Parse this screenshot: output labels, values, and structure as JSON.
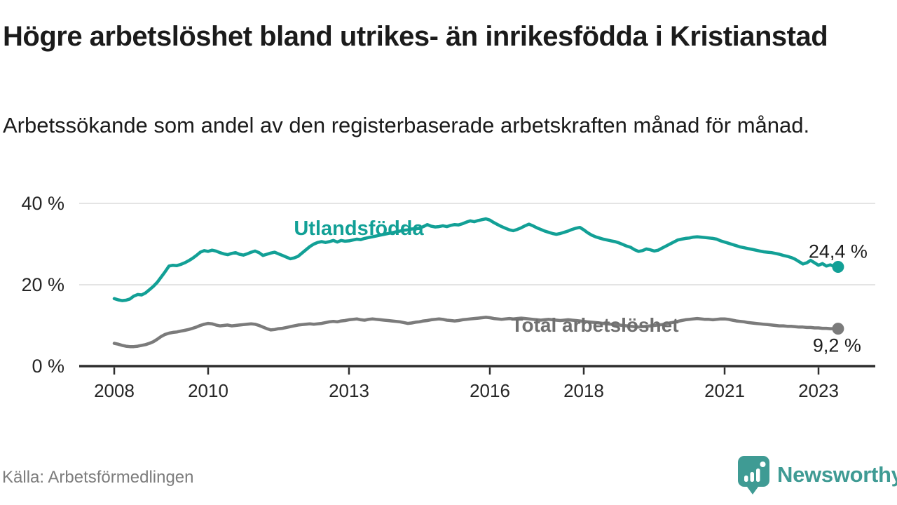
{
  "header": {
    "title": "Högre arbetslöshet bland utrikes- än inrikesfödda i Kristianstad",
    "subtitle": "Arbetssökande som andel av den registerbaserade arbetskraften månad för månad."
  },
  "footer": {
    "source": "Källa: Arbetsförmedlingen",
    "brand": "Newsworthy",
    "brand_icon": "newsworthy-bubble-chart-icon"
  },
  "colors": {
    "teal_series": "#12a096",
    "gray_series": "#7b7b7b",
    "gray_label": "#6f6f6f",
    "grid": "#dcdcdc",
    "axis": "#2e2e2e",
    "tick_text": "#262626",
    "value_label_text": "#1d1d1d",
    "title_text": "#1b1b1b",
    "source_text": "#7d7d7d",
    "brand_teal": "#3f9b94"
  },
  "chart_data": {
    "type": "line",
    "title": "Högre arbetslöshet bland utrikes- än inrikesfödda i Kristianstad",
    "subtitle": "Arbetssökande som andel av den registerbaserade arbetskraften månad för månad.",
    "grid": "horizontal-only",
    "legend_position": "inline-labels-on-lines",
    "x_axis": {
      "unit": "year",
      "range_years": [
        2007.25,
        2024.2
      ],
      "ticks": [
        2008,
        2010,
        2013,
        2016,
        2018,
        2021,
        2023
      ],
      "tick_labels": [
        "2008",
        "2010",
        "2013",
        "2016",
        "2018",
        "2021",
        "2023"
      ]
    },
    "y_axis": {
      "unit": "percent",
      "range": [
        0,
        43
      ],
      "ticks": [
        0,
        20,
        40
      ],
      "tick_labels": [
        "0 %",
        "20 %",
        "40 %"
      ]
    },
    "series": [
      {
        "name": "Utlandsfödda",
        "color": "#12a096",
        "label_color": "#12a096",
        "start_year": 2008,
        "interval_months": 1,
        "end_label": "24,4 %",
        "end_value": 24.4,
        "values": [
          16.6,
          16.3,
          16.1,
          16.2,
          16.5,
          17.2,
          17.6,
          17.5,
          18.0,
          18.8,
          19.6,
          20.6,
          21.9,
          23.2,
          24.6,
          24.8,
          24.7,
          25.0,
          25.4,
          25.9,
          26.5,
          27.2,
          28.0,
          28.4,
          28.2,
          28.5,
          28.3,
          27.9,
          27.6,
          27.4,
          27.7,
          27.9,
          27.5,
          27.3,
          27.6,
          28.0,
          28.3,
          27.9,
          27.2,
          27.5,
          27.8,
          28.0,
          27.6,
          27.2,
          26.8,
          26.4,
          26.6,
          27.0,
          27.8,
          28.6,
          29.4,
          30.0,
          30.4,
          30.6,
          30.4,
          30.6,
          30.9,
          30.5,
          30.9,
          30.7,
          30.8,
          31.0,
          31.2,
          31.1,
          31.4,
          31.6,
          31.8,
          32.0,
          32.2,
          32.4,
          32.6,
          32.8,
          33.0,
          33.2,
          33.4,
          33.5,
          33.7,
          33.8,
          33.9,
          34.3,
          34.8,
          34.4,
          34.2,
          34.3,
          34.5,
          34.3,
          34.6,
          34.8,
          34.7,
          35.0,
          35.4,
          35.7,
          35.5,
          35.8,
          36.0,
          36.2,
          35.9,
          35.3,
          34.8,
          34.3,
          33.9,
          33.5,
          33.3,
          33.6,
          34.0,
          34.5,
          34.9,
          34.5,
          34.0,
          33.6,
          33.2,
          32.9,
          32.6,
          32.4,
          32.6,
          32.9,
          33.2,
          33.6,
          33.9,
          34.1,
          33.5,
          32.8,
          32.2,
          31.8,
          31.5,
          31.2,
          31.0,
          30.8,
          30.6,
          30.3,
          29.9,
          29.5,
          29.2,
          28.6,
          28.2,
          28.4,
          28.8,
          28.6,
          28.3,
          28.5,
          29.0,
          29.5,
          30.0,
          30.5,
          31.0,
          31.2,
          31.4,
          31.5,
          31.7,
          31.8,
          31.7,
          31.6,
          31.5,
          31.4,
          31.2,
          30.8,
          30.5,
          30.2,
          29.9,
          29.6,
          29.3,
          29.1,
          28.9,
          28.7,
          28.5,
          28.3,
          28.1,
          28.0,
          27.9,
          27.7,
          27.5,
          27.2,
          27.0,
          26.7,
          26.3,
          25.7,
          25.1,
          25.4,
          26.0,
          25.4,
          24.8,
          25.2,
          24.6,
          24.9,
          24.5,
          24.4
        ]
      },
      {
        "name": "Total arbetslöshet",
        "color": "#7b7b7b",
        "label_color": "#6f6f6f",
        "start_year": 2008,
        "interval_months": 1,
        "end_label": "9,2 %",
        "end_value": 9.2,
        "values": [
          5.6,
          5.4,
          5.1,
          4.9,
          4.8,
          4.8,
          4.9,
          5.1,
          5.3,
          5.6,
          6.0,
          6.6,
          7.3,
          7.8,
          8.1,
          8.3,
          8.4,
          8.6,
          8.8,
          9.0,
          9.3,
          9.6,
          10.0,
          10.3,
          10.5,
          10.4,
          10.1,
          9.9,
          10.0,
          10.1,
          9.9,
          10.0,
          10.1,
          10.2,
          10.3,
          10.4,
          10.3,
          10.0,
          9.6,
          9.2,
          8.9,
          9.0,
          9.2,
          9.3,
          9.5,
          9.7,
          9.9,
          10.1,
          10.2,
          10.3,
          10.4,
          10.3,
          10.4,
          10.5,
          10.7,
          10.9,
          11.0,
          10.9,
          11.1,
          11.2,
          11.4,
          11.5,
          11.6,
          11.4,
          11.3,
          11.5,
          11.6,
          11.5,
          11.4,
          11.3,
          11.2,
          11.1,
          11.0,
          10.9,
          10.7,
          10.5,
          10.6,
          10.8,
          10.9,
          11.1,
          11.2,
          11.4,
          11.5,
          11.6,
          11.5,
          11.3,
          11.2,
          11.1,
          11.2,
          11.4,
          11.5,
          11.6,
          11.7,
          11.8,
          11.9,
          12.0,
          11.9,
          11.7,
          11.6,
          11.5,
          11.6,
          11.7,
          11.6,
          11.7,
          11.8,
          11.7,
          11.6,
          11.5,
          11.4,
          11.3,
          11.4,
          11.5,
          11.4,
          11.3,
          11.2,
          11.3,
          11.4,
          11.3,
          11.2,
          11.1,
          11.0,
          10.9,
          10.8,
          10.7,
          10.6,
          10.5,
          10.4,
          10.3,
          10.2,
          10.1,
          10.0,
          9.9,
          9.8,
          9.7,
          9.6,
          9.7,
          9.8,
          9.9,
          10.0,
          10.1,
          10.2,
          10.4,
          10.6,
          10.8,
          11.0,
          11.2,
          11.4,
          11.5,
          11.6,
          11.7,
          11.6,
          11.5,
          11.5,
          11.4,
          11.5,
          11.6,
          11.6,
          11.5,
          11.3,
          11.1,
          11.0,
          10.9,
          10.7,
          10.6,
          10.5,
          10.4,
          10.3,
          10.2,
          10.1,
          10.0,
          9.9,
          9.9,
          9.8,
          9.8,
          9.7,
          9.6,
          9.6,
          9.5,
          9.5,
          9.4,
          9.4,
          9.3,
          9.3,
          9.2,
          9.2,
          9.2
        ]
      }
    ]
  }
}
